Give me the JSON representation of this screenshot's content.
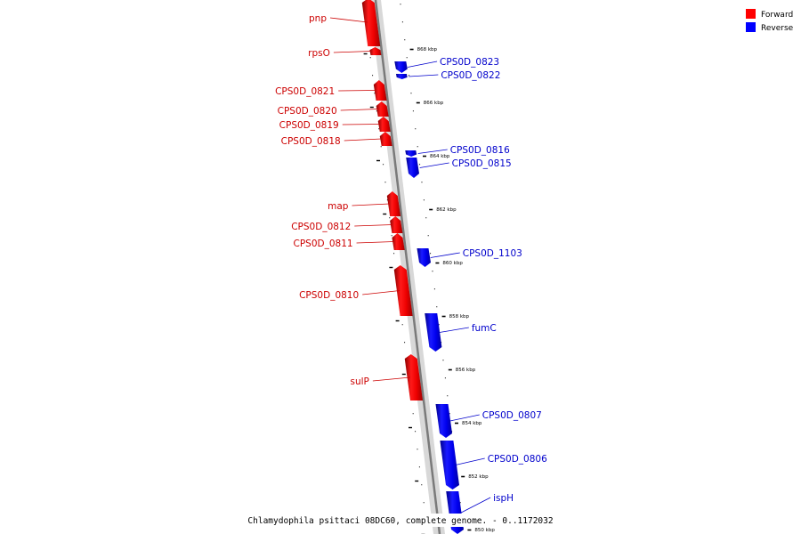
{
  "legend": {
    "forward": {
      "label": "Forward",
      "color": "#ff0000"
    },
    "reverse": {
      "label": "Reverse",
      "color": "#0000ff"
    }
  },
  "caption": "Chlamydophila psittaci 08DC60, complete genome. - 0..1172032",
  "ticks": [
    "868 kbp",
    "866 kbp",
    "864 kbp",
    "862 kbp",
    "860 kbp",
    "858 kbp",
    "856 kbp",
    "854 kbp",
    "852 kbp",
    "850 kbp"
  ],
  "genes_forward": [
    "pnp",
    "rpsO",
    "CPS0D_0821",
    "CPS0D_0820",
    "CPS0D_0819",
    "CPS0D_0818",
    "map",
    "CPS0D_0812",
    "CPS0D_0811",
    "CPS0D_0810",
    "sulP"
  ],
  "genes_reverse": [
    "CPS0D_0823",
    "CPS0D_0822",
    "CPS0D_0816",
    "CPS0D_0815",
    "CPS0D_1103",
    "fumC",
    "CPS0D_0807",
    "CPS0D_0806",
    "ispH"
  ]
}
